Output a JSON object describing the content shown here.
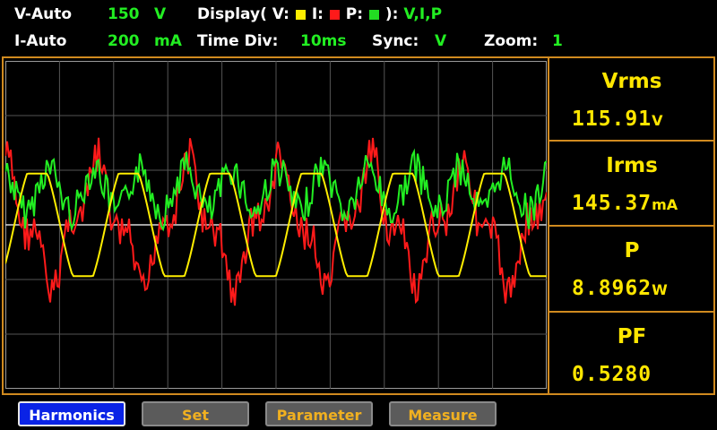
{
  "header": {
    "row1": {
      "v_mode": "V-Auto",
      "v_range_value": "150",
      "v_range_unit": "V",
      "display_prefix": "Display( V:",
      "display_i": "I:",
      "display_p": "P:",
      "display_suffix": "):",
      "display_value": "V,I,P",
      "swatch_colors": {
        "v": "#ffee00",
        "i": "#ff1a1a",
        "p": "#22dd22"
      }
    },
    "row2": {
      "i_mode": "I-Auto",
      "i_range_value": "200",
      "i_range_unit": "mA",
      "time_div_label": "Time  Div:",
      "time_div_value": "10ms",
      "sync_label": "Sync:",
      "sync_value": "V",
      "zoom_label": "Zoom:",
      "zoom_value": "1"
    }
  },
  "measurements": [
    {
      "label": "Vrms",
      "value": "115.91",
      "unit": "V"
    },
    {
      "label": "Irms",
      "value": "145.37",
      "unit": "mA"
    },
    {
      "label": "P",
      "value": "8.8962",
      "unit": "W"
    },
    {
      "label": "PF",
      "value": "0.5280",
      "unit": ""
    }
  ],
  "softkeys": [
    {
      "label": "Harmonics",
      "active": true
    },
    {
      "label": "Set",
      "active": false
    },
    {
      "label": "Parameter",
      "active": false
    },
    {
      "label": "Measure",
      "active": false
    }
  ],
  "trace_colors": {
    "voltage": "#ffee00",
    "current": "#ff1a1a",
    "power": "#22ee22",
    "grid": "#8a8a8a",
    "frame": "#d08a1f"
  }
}
